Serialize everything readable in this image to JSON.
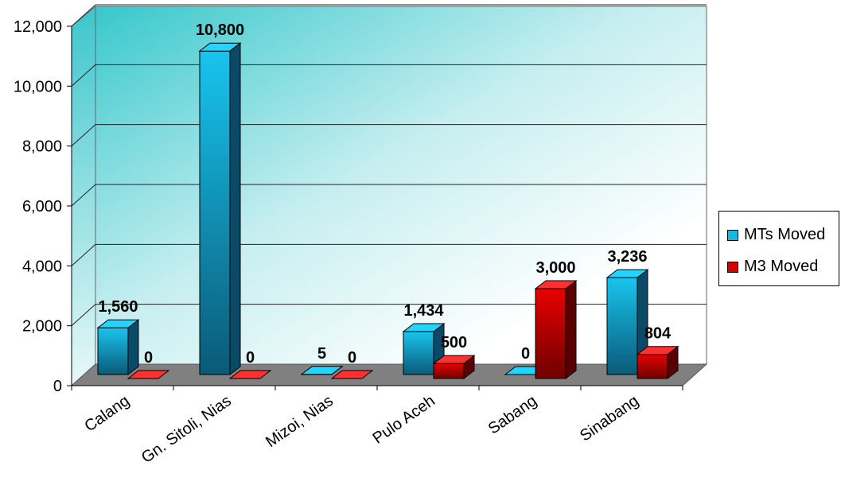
{
  "chart_data": {
    "type": "bar",
    "categories": [
      "Calang",
      "Gn. Sitoli, Nias",
      "Mizoi, Nias",
      "Pulo Aceh",
      "Sabang",
      "Sinabang"
    ],
    "series": [
      {
        "name": "MTs Moved",
        "values": [
          1560,
          10800,
          5,
          1434,
          0,
          3236
        ],
        "labels": [
          "1,560",
          "10,800",
          "5",
          "1,434",
          "0",
          "3,236"
        ],
        "color": "#16b8e0"
      },
      {
        "name": "M3 Moved",
        "values": [
          0,
          0,
          0,
          500,
          3000,
          804
        ],
        "labels": [
          "0",
          "0",
          "0",
          "500",
          "3,000",
          "804"
        ],
        "color": "#d40000"
      }
    ],
    "yticks": [
      "0",
      "2,000",
      "4,000",
      "6,000",
      "8,000",
      "10,000",
      "12,000"
    ],
    "ylim": [
      0,
      12000
    ],
    "grid": true,
    "legend_position": "right",
    "title": "",
    "xlabel": "",
    "ylabel": ""
  }
}
